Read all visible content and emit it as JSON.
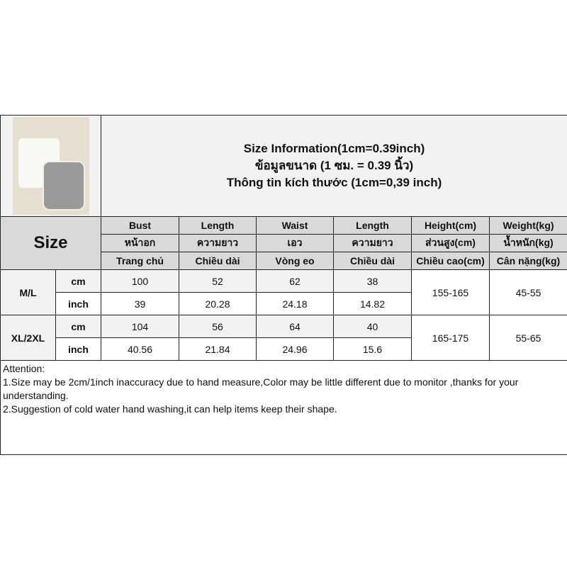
{
  "title": {
    "line1": "Size Information(1cm=0.39inch)",
    "line2": "ข้อมูลขนาด (1 ซม. = 0.39 นิ้ว)",
    "line3": "Thông tin kích thước (1cm=0,39 inch)"
  },
  "size_label": "Size",
  "headers": [
    [
      "Bust",
      "หน้าอก",
      "Trang chủ"
    ],
    [
      "Length",
      "ความยาว",
      "Chiều dài"
    ],
    [
      "Waist",
      "เอว",
      "Vòng eo"
    ],
    [
      "Length",
      "ความยาว",
      "Chiều dài"
    ],
    [
      "Height(cm)",
      "ส่วนสูง(cm)",
      "Chiều cao(cm)"
    ],
    [
      "Weight(kg)",
      "น้ำหนัก(kg)",
      "Cân nặng(kg)"
    ]
  ],
  "sizes": [
    {
      "name": "M/L",
      "cm_label": "cm",
      "inch_label": "inch",
      "cm": [
        "100",
        "52",
        "62",
        "38"
      ],
      "inch": [
        "39",
        "20.28",
        "24.18",
        "14.82"
      ],
      "height": "155-165",
      "weight": "45-55"
    },
    {
      "name": "XL/2XL",
      "cm_label": "cm",
      "inch_label": "inch",
      "cm": [
        "104",
        "56",
        "64",
        "40"
      ],
      "inch": [
        "40.56",
        "21.84",
        "24.96",
        "15.6"
      ],
      "height": "165-175",
      "weight": "55-65"
    }
  ],
  "attention": {
    "heading": "Attention:",
    "note1": "1.Size may be 2cm/1inch inaccuracy due to hand measure,Color may be little different due to monitor ,thanks for your understanding.",
    "note2": "2.Suggestion of cold water hand washing,it can help items keep their shape."
  }
}
